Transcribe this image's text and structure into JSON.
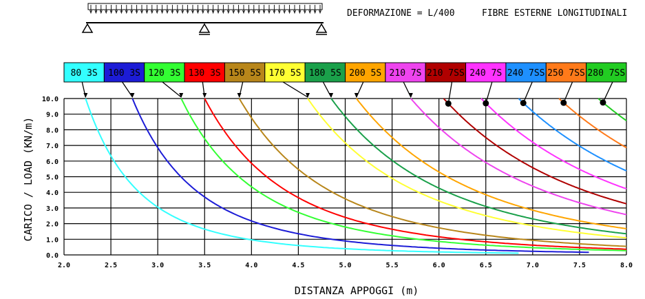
{
  "header": {
    "deformation": "DEFORMAZIONE = L/400",
    "fibres": "FIBRE ESTERNE LONGITUDINALI"
  },
  "chart_data": {
    "type": "line",
    "xlabel": "DISTANZA APPOGGI (m)",
    "ylabel": "CARICO / LOAD (KN/m)",
    "xlim": [
      2.0,
      8.0
    ],
    "ylim": [
      0.0,
      10.0
    ],
    "x_ticks": [
      "2.0",
      "2.5",
      "3.0",
      "3.5",
      "4.0",
      "4.5",
      "5.0",
      "5.5",
      "6.0",
      "6.5",
      "7.0",
      "7.5",
      "8.0"
    ],
    "y_ticks": [
      "0.0",
      "1.0",
      "2.0",
      "3.0",
      "4.0",
      "5.0",
      "6.0",
      "7.0",
      "8.0",
      "9.0",
      "10.0"
    ],
    "grid": true,
    "legend_placement": "top",
    "series": [
      {
        "name": "80 3S",
        "color": "#33ffff",
        "x0": 2.23,
        "x_end": 6.85,
        "dot": false
      },
      {
        "name": "100 3S",
        "color": "#1c1cd6",
        "x0": 2.73,
        "x_end": 7.6,
        "dot": false
      },
      {
        "name": "120 3S",
        "color": "#33ff33",
        "x0": 3.25,
        "x_end": 8.0,
        "dot": false
      },
      {
        "name": "130 3S",
        "color": "#ff0000",
        "x0": 3.5,
        "x_end": 8.0,
        "dot": false
      },
      {
        "name": "150 5S",
        "color": "#b8861a",
        "x0": 3.87,
        "x_end": 8.0,
        "dot": false
      },
      {
        "name": "170 5S",
        "color": "#ffff33",
        "x0": 4.6,
        "x_end": 8.0,
        "dot": false
      },
      {
        "name": "180 5S",
        "color": "#1aa04a",
        "x0": 4.85,
        "x_end": 8.0,
        "dot": false
      },
      {
        "name": "200 5S",
        "color": "#ffa500",
        "x0": 5.12,
        "x_end": 8.0,
        "dot": false
      },
      {
        "name": "210 7S",
        "color": "#ee44ee",
        "x0": 5.7,
        "x_end": 8.0,
        "dot": false
      },
      {
        "name": "210 7SS",
        "color": "#b00000",
        "x0": 6.05,
        "x_end": 8.0,
        "dot": true
      },
      {
        "name": "240 7S",
        "color": "#ff33ff",
        "x0": 6.45,
        "x_end": 8.0,
        "dot": true
      },
      {
        "name": "240 7SS",
        "color": "#1e90ff",
        "x0": 6.85,
        "x_end": 8.0,
        "dot": true
      },
      {
        "name": "250 7SS",
        "color": "#ff7a1a",
        "x0": 7.28,
        "x_end": 8.0,
        "dot": true
      },
      {
        "name": "280 7SS",
        "color": "#22cc22",
        "x0": 7.7,
        "x_end": 8.0,
        "dot": true
      }
    ]
  }
}
